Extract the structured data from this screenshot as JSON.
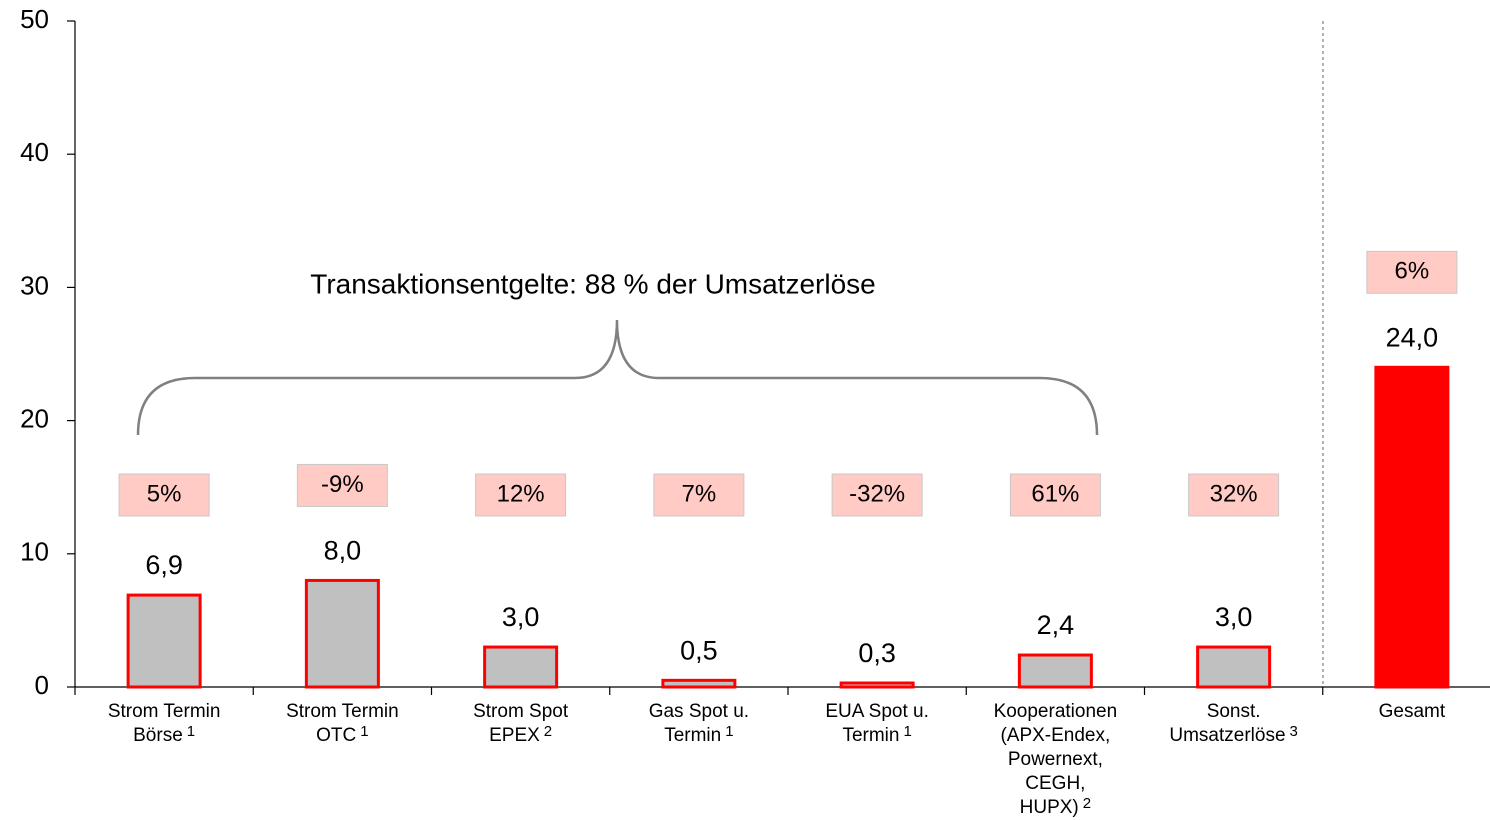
{
  "chart_data": {
    "type": "bar",
    "annotation": "Transaktionsentgelte: 88 % der Umsatzerlöse",
    "categories": [
      [
        "Strom Termin",
        "Börse"
      ],
      [
        "Strom Termin",
        "OTC"
      ],
      [
        "Strom Spot",
        "EPEX"
      ],
      [
        "Gas Spot u.",
        "Termin"
      ],
      [
        "EUA Spot u.",
        "Termin"
      ],
      [
        "Kooperationen",
        "(APX-Endex,",
        "Powernext,",
        "CEGH,",
        "HUPX)"
      ],
      [
        "Sonst.",
        "Umsatzerlöse"
      ],
      [
        "Gesamt"
      ]
    ],
    "category_notes": [
      "1",
      "1",
      "2",
      "1",
      "1",
      "2",
      "3",
      null
    ],
    "values": [
      6.9,
      8.0,
      3.0,
      0.5,
      0.3,
      2.4,
      3.0,
      24.0
    ],
    "value_labels": [
      "6,9",
      "8,0",
      "3,0",
      "0,5",
      "0,3",
      "2,4",
      "3,0",
      "24,0"
    ],
    "changes": [
      5,
      -9,
      12,
      7,
      -32,
      61,
      32,
      6
    ],
    "change_labels": [
      "5%",
      "-9%",
      "12%",
      "7%",
      "-32%",
      "61%",
      "32%",
      "6%"
    ],
    "colors": [
      "#c0c0c0",
      "#c0c0c0",
      "#c0c0c0",
      "#c0c0c0",
      "#c0c0c0",
      "#c0c0c0",
      "#c0c0c0",
      "#ff0000"
    ],
    "edge_color": "#ff0000",
    "change_box_color": "#ffcbc4",
    "ylim": [
      0,
      50
    ],
    "yticks": [
      0,
      10,
      20,
      30,
      40,
      50
    ]
  }
}
